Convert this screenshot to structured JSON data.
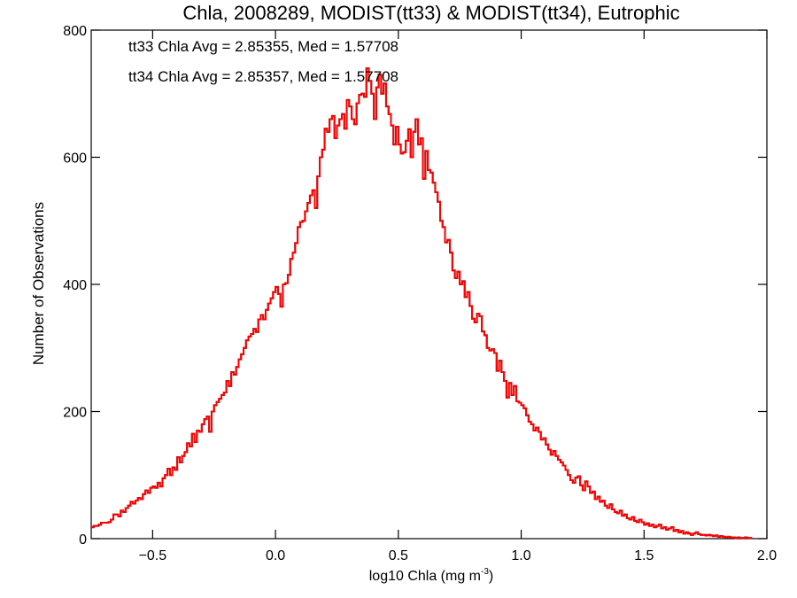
{
  "chart_data": {
    "type": "histogram",
    "title": "Chla, 2008289, MODIST(tt33) & MODIST(tt34), Eutrophic",
    "xlabel": "log10 Chla (mg m",
    "xlabel_sup": "-3",
    "xlabel_close": ")",
    "ylabel": "Number of Observations",
    "xlim": [
      -0.75,
      2.0
    ],
    "ylim": [
      0,
      800
    ],
    "xticks": [
      -0.5,
      0.0,
      0.5,
      1.0,
      1.5,
      2.0
    ],
    "xtick_labels": [
      "−0.5",
      "0.0",
      "0.5",
      "1.0",
      "1.5",
      "2.0"
    ],
    "yticks": [
      0,
      200,
      400,
      600,
      800
    ],
    "ytick_labels": [
      "0",
      "200",
      "400",
      "600",
      "800"
    ],
    "bin_width": 0.01,
    "x_start": -0.75,
    "grid": false,
    "colors": {
      "tt33": "#000000",
      "tt34": "#ff0000"
    },
    "annotations": [
      {
        "text": "tt33 Chla Avg = 2.85355, Med = 1.57708",
        "color": "#000000"
      },
      {
        "text": "tt34 Chla Avg = 2.85357, Med = 1.57708",
        "color": "#ff0000"
      }
    ],
    "series": [
      {
        "name": "tt33",
        "color": "#000000",
        "values": [
          18,
          20,
          20,
          22,
          25,
          25,
          25,
          26,
          30,
          38,
          38,
          35,
          44,
          42,
          48,
          52,
          58,
          55,
          60,
          64,
          62,
          70,
          76,
          72,
          80,
          82,
          80,
          88,
          82,
          95,
          100,
          110,
          100,
          112,
          108,
          128,
          120,
          130,
          136,
          150,
          145,
          165,
          152,
          170,
          168,
          180,
          188,
          192,
          168,
          200,
          210,
          215,
          220,
          226,
          230,
          248,
          240,
          262,
          258,
          270,
          282,
          290,
          300,
          312,
          318,
          322,
          330,
          325,
          345,
          352,
          345,
          360,
          370,
          378,
          388,
          396,
          385,
          365,
          400,
          402,
          415,
          440,
          450,
          465,
          490,
          498,
          500,
          515,
          528,
          540,
          548,
          520,
          570,
          600,
          612,
          645,
          640,
          660,
          665,
          630,
          650,
          660,
          668,
          645,
          690,
          680,
          660,
          652,
          685,
          698,
          700,
          695,
          740,
          720,
          700,
          660,
          710,
          730,
          700,
          716,
          680,
          668,
          650,
          620,
          648,
          620,
          606,
          608,
          626,
          644,
          600,
          640,
          660,
          620,
          630,
          566,
          610,
          580,
          576,
          560,
          545,
          530,
          500,
          490,
          466,
          470,
          450,
          422,
          410,
          420,
          400,
          405,
          380,
          388,
          366,
          346,
          340,
          354,
          350,
          326,
          320,
          300,
          296,
          298,
          292,
          264,
          280,
          262,
          248,
          222,
          245,
          226,
          240,
          216,
          214,
          210,
          205,
          194,
          184,
          180,
          170,
          175,
          168,
          156,
          158,
          148,
          140,
          132,
          138,
          130,
          124,
          120,
          115,
          108,
          100,
          92,
          88,
          96,
          98,
          84,
          76,
          90,
          82,
          72,
          74,
          62,
          66,
          58,
          60,
          52,
          48,
          54,
          46,
          42,
          40,
          44,
          36,
          38,
          32,
          30,
          34,
          28,
          26,
          30,
          26,
          22,
          24,
          20,
          22,
          18,
          20,
          22,
          16,
          18,
          14,
          16,
          18,
          12,
          14,
          10,
          12,
          8,
          10,
          8,
          6,
          8,
          10,
          7,
          6,
          6,
          5,
          6,
          5,
          4,
          5,
          3,
          4,
          3,
          2,
          3,
          2,
          2,
          1,
          2,
          1,
          1,
          2,
          1,
          1
        ]
      },
      {
        "name": "tt34",
        "color": "#ff0000",
        "values": [
          18,
          20,
          20,
          22,
          25,
          25,
          25,
          26,
          30,
          38,
          38,
          35,
          44,
          42,
          48,
          52,
          58,
          55,
          60,
          64,
          62,
          70,
          76,
          72,
          80,
          82,
          80,
          88,
          82,
          95,
          100,
          110,
          100,
          112,
          108,
          128,
          120,
          130,
          136,
          150,
          145,
          165,
          152,
          170,
          168,
          180,
          188,
          192,
          168,
          200,
          210,
          215,
          220,
          226,
          230,
          248,
          240,
          262,
          258,
          270,
          282,
          290,
          300,
          312,
          318,
          322,
          330,
          325,
          345,
          352,
          345,
          360,
          370,
          378,
          388,
          396,
          385,
          365,
          400,
          402,
          415,
          440,
          450,
          465,
          490,
          498,
          500,
          515,
          528,
          540,
          548,
          520,
          570,
          600,
          612,
          645,
          640,
          660,
          665,
          630,
          650,
          660,
          668,
          645,
          690,
          680,
          660,
          652,
          685,
          698,
          700,
          695,
          740,
          720,
          700,
          660,
          710,
          730,
          700,
          716,
          680,
          668,
          650,
          620,
          648,
          620,
          606,
          608,
          626,
          644,
          600,
          640,
          660,
          620,
          630,
          566,
          610,
          580,
          576,
          560,
          545,
          530,
          500,
          490,
          466,
          470,
          450,
          422,
          410,
          420,
          400,
          405,
          380,
          388,
          366,
          346,
          340,
          354,
          350,
          326,
          320,
          300,
          296,
          298,
          292,
          264,
          280,
          262,
          248,
          222,
          245,
          226,
          240,
          216,
          214,
          210,
          205,
          194,
          184,
          180,
          170,
          175,
          168,
          156,
          158,
          148,
          140,
          132,
          138,
          130,
          124,
          120,
          115,
          108,
          100,
          92,
          88,
          96,
          98,
          84,
          76,
          90,
          82,
          72,
          74,
          62,
          66,
          58,
          60,
          52,
          48,
          54,
          46,
          42,
          40,
          44,
          36,
          38,
          32,
          30,
          34,
          28,
          26,
          30,
          26,
          22,
          24,
          20,
          22,
          18,
          20,
          22,
          16,
          18,
          14,
          16,
          18,
          12,
          14,
          10,
          12,
          8,
          10,
          8,
          6,
          8,
          10,
          7,
          6,
          6,
          5,
          6,
          5,
          4,
          5,
          3,
          4,
          3,
          2,
          3,
          2,
          2,
          1,
          2,
          1,
          1,
          2,
          1,
          1
        ]
      }
    ]
  }
}
